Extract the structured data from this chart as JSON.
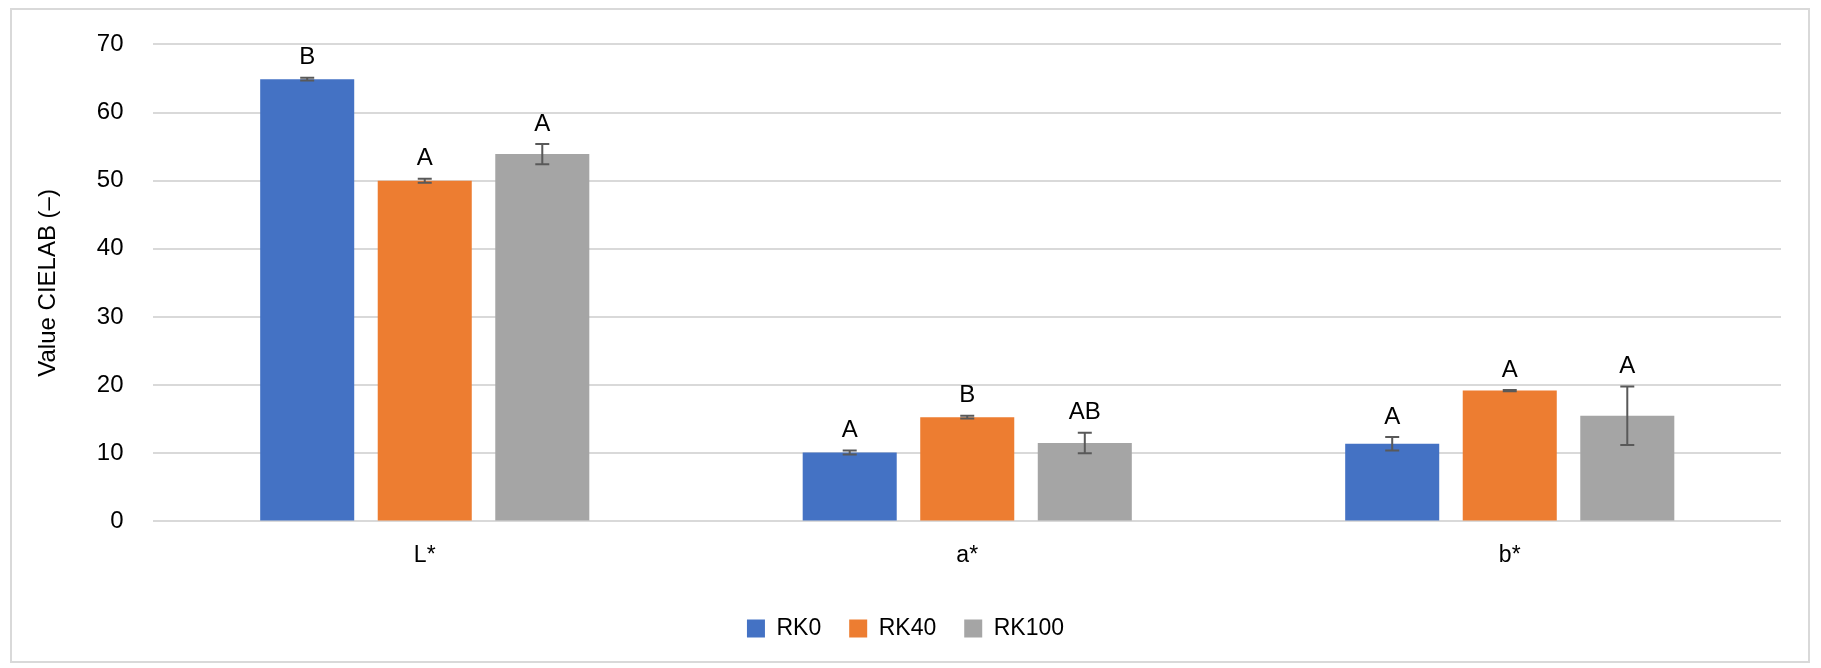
{
  "chart_data": {
    "type": "bar",
    "ylabel": "Value CIELAB (–)",
    "categories": [
      "L*",
      "a*",
      "b*"
    ],
    "series": [
      {
        "name": "RK0",
        "color": "#4472c4",
        "values": [
          64.9,
          10.1,
          11.4
        ],
        "errors": [
          0.2,
          0.3,
          1.0
        ],
        "value_labels": [
          "B",
          "A",
          "A"
        ]
      },
      {
        "name": "RK40",
        "color": "#ed7d31",
        "values": [
          50.0,
          15.3,
          19.2
        ],
        "errors": [
          0.3,
          0.2,
          0.1
        ],
        "value_labels": [
          "A",
          "B",
          "A"
        ]
      },
      {
        "name": "RK100",
        "color": "#a5a5a5",
        "values": [
          53.9,
          11.5,
          15.5
        ],
        "errors": [
          1.5,
          1.5,
          4.3
        ],
        "value_labels": [
          "A",
          "AB",
          "A"
        ]
      }
    ],
    "ylim": [
      0,
      70
    ],
    "yticks": [
      0,
      10,
      20,
      30,
      40,
      50,
      60,
      70
    ],
    "grid": "y",
    "legend": "bottom"
  }
}
